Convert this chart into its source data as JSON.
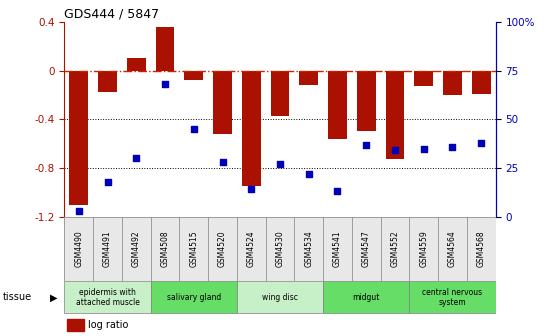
{
  "title": "GDS444 / 5847",
  "samples": [
    "GSM4490",
    "GSM4491",
    "GSM4492",
    "GSM4508",
    "GSM4515",
    "GSM4520",
    "GSM4524",
    "GSM4530",
    "GSM4534",
    "GSM4541",
    "GSM4547",
    "GSM4552",
    "GSM4559",
    "GSM4564",
    "GSM4568"
  ],
  "log_ratio": [
    -1.1,
    -0.18,
    0.1,
    0.36,
    -0.08,
    -0.52,
    -0.95,
    -0.37,
    -0.12,
    -0.56,
    -0.5,
    -0.73,
    -0.13,
    -0.2,
    -0.19
  ],
  "percentile": [
    3,
    18,
    30,
    68,
    45,
    28,
    14,
    27,
    22,
    13,
    37,
    34,
    35,
    36,
    38
  ],
  "tissue_groups": [
    {
      "label": "epidermis with\nattached muscle",
      "start": 0,
      "end": 3,
      "color": "#c8f0c8"
    },
    {
      "label": "salivary gland",
      "start": 3,
      "end": 6,
      "color": "#66dd66"
    },
    {
      "label": "wing disc",
      "start": 6,
      "end": 9,
      "color": "#c8f0c8"
    },
    {
      "label": "midgut",
      "start": 9,
      "end": 12,
      "color": "#66dd66"
    },
    {
      "label": "central nervous\nsystem",
      "start": 12,
      "end": 15,
      "color": "#66dd66"
    }
  ],
  "bar_color": "#aa1100",
  "dot_color": "#0000bb",
  "hline_color": "#cc2200",
  "ylim_left": [
    -1.2,
    0.4
  ],
  "ylim_right": [
    0,
    100
  ],
  "right_ticks": [
    0,
    25,
    50,
    75,
    100
  ],
  "right_tick_labels": [
    "0",
    "25",
    "50",
    "75",
    "100%"
  ],
  "left_ticks": [
    -1.2,
    -0.8,
    -0.4,
    0.0,
    0.4
  ],
  "left_tick_labels": [
    "-1.2",
    "-0.8",
    "-0.4",
    "0",
    "0.4"
  ]
}
